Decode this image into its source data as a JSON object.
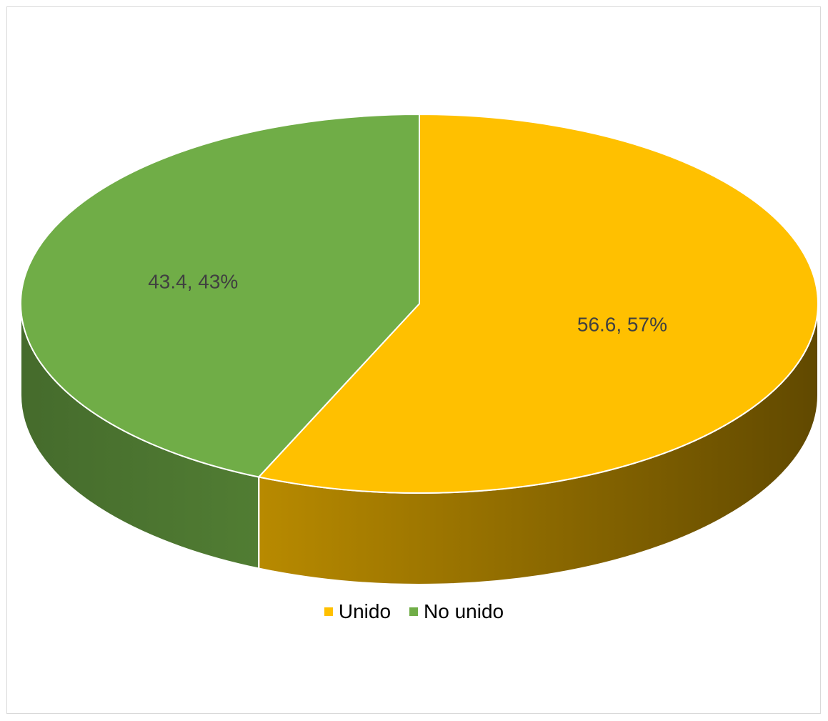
{
  "chart_data": {
    "type": "pie",
    "style": "3d",
    "categories": [
      "Unido",
      "No unido"
    ],
    "values": [
      56.6,
      43.4
    ],
    "percent_labels": [
      "57%",
      "43%"
    ],
    "data_labels": [
      "56.6, 57%",
      "43.4, 43%"
    ],
    "colors": [
      "#FFC000",
      "#70AD47"
    ],
    "legend_position": "bottom",
    "title": ""
  },
  "legend": {
    "items": [
      {
        "label": "Unido",
        "color": "#FFC000"
      },
      {
        "label": "No unido",
        "color": "#70AD47"
      }
    ]
  }
}
